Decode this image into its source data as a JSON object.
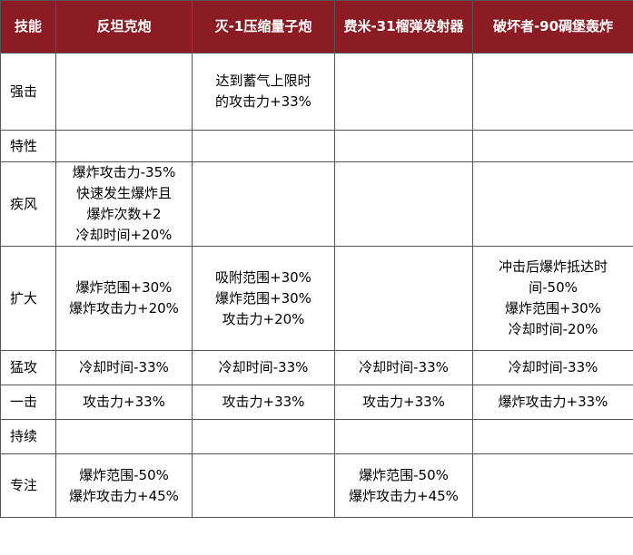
{
  "table": {
    "headers": [
      "技能",
      "反坦克炮",
      "灭-1压缩量子炮",
      "费米-31榴弹发射器",
      "破坏者-90碉堡轰炸"
    ],
    "header_colors": {
      "background": "#8b1c24",
      "text": "#ffffff"
    },
    "rows": [
      {
        "skill": "强击",
        "cells": [
          [],
          [
            "达到蓄气上限时",
            "的攻击力+33%"
          ],
          [],
          []
        ]
      },
      {
        "skill": "特性",
        "cells": [
          [],
          [],
          [],
          []
        ]
      },
      {
        "skill": "疾风",
        "cells": [
          [
            "爆炸攻击力-35%",
            "快速发生爆炸且",
            "爆炸次数+2",
            "冷却时间+20%"
          ],
          [],
          [],
          []
        ]
      },
      {
        "skill": "扩大",
        "cells": [
          [
            "爆炸范围+30%",
            "爆炸攻击力+20%"
          ],
          [
            "吸附范围+30%",
            "爆炸范围+30%",
            "攻击力+20%"
          ],
          [],
          [
            "冲击后爆炸抵达时",
            "间-50%",
            "爆炸范围+30%",
            "冷却时间-20%"
          ]
        ]
      },
      {
        "skill": "猛攻",
        "cells": [
          [
            "冷却时间-33%"
          ],
          [
            "冷却时间-33%"
          ],
          [
            "冷却时间-33%"
          ],
          [
            "冷却时间-33%"
          ]
        ]
      },
      {
        "skill": "一击",
        "cells": [
          [
            "攻击力+33%"
          ],
          [
            "攻击力+33%"
          ],
          [
            "攻击力+33%"
          ],
          [
            "爆炸攻击力+33%"
          ]
        ]
      },
      {
        "skill": "持续",
        "cells": [
          [],
          [],
          [],
          []
        ]
      },
      {
        "skill": "专注",
        "cells": [
          [
            "爆炸范围-50%",
            "爆炸攻击力+45%"
          ],
          [],
          [
            "爆炸范围-50%",
            "爆炸攻击力+45%"
          ],
          []
        ]
      }
    ]
  }
}
